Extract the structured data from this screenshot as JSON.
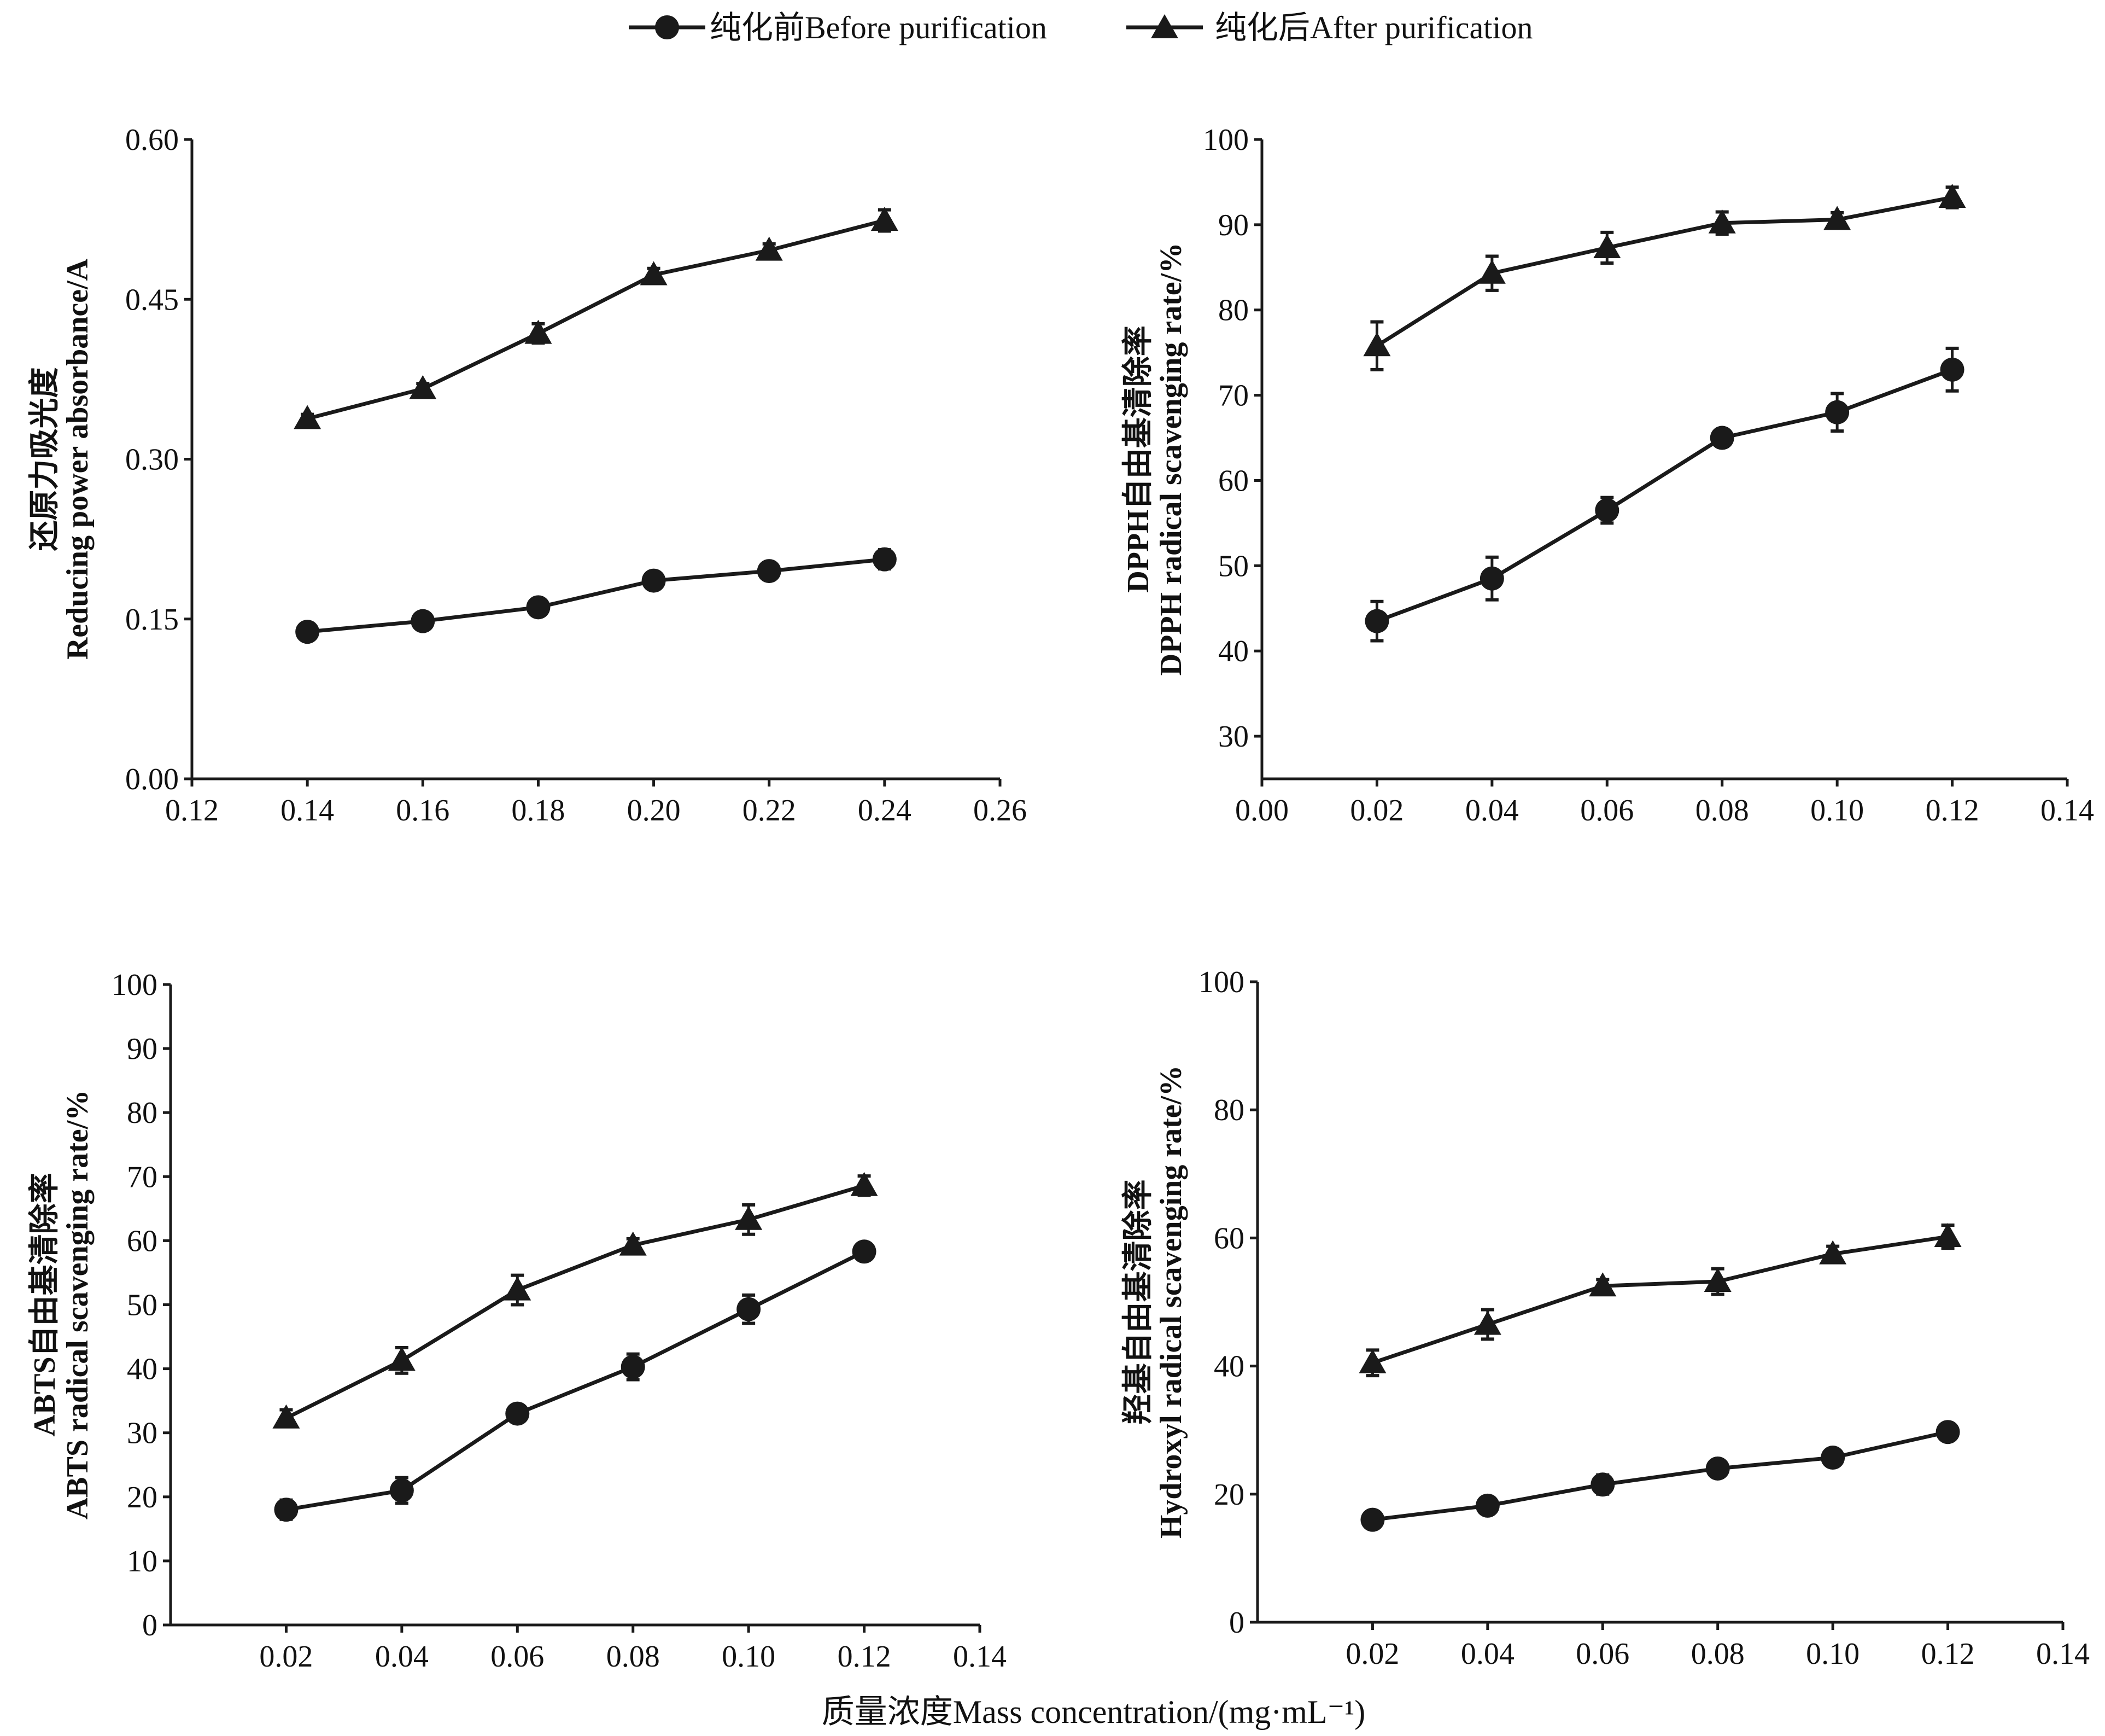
{
  "legend": {
    "before": "纯化前Before purification",
    "after": "纯化后After purification"
  },
  "shared_xlabel": "质量浓度Mass concentration/(mg·mL⁻¹)",
  "colors": {
    "line": "#1a1a1a",
    "background": "#ffffff"
  },
  "chart_data": [
    {
      "type": "line",
      "ylabel_cn": "还原力吸光度",
      "ylabel_en": "Reducing power absorbance/A",
      "xlim": [
        0.12,
        0.26
      ],
      "ylim": [
        0,
        0.6
      ],
      "xticks": [
        "0.12",
        "0.14",
        "0.16",
        "0.18",
        "0.20",
        "0.22",
        "0.24",
        "0.26"
      ],
      "yticks": [
        "0.00",
        "0.15",
        "0.30",
        "0.45",
        "0.60"
      ],
      "x": [
        0.14,
        0.16,
        0.18,
        0.2,
        0.22,
        0.24
      ],
      "series": [
        {
          "name": "纯化前Before purification",
          "marker": "circle",
          "values": [
            0.138,
            0.148,
            0.161,
            0.186,
            0.195,
            0.206
          ],
          "errors": [
            0.005,
            0.007,
            0.005,
            0.007,
            0.007,
            0.009
          ]
        },
        {
          "name": "纯化后After purification",
          "marker": "triangle",
          "values": [
            0.338,
            0.366,
            0.418,
            0.473,
            0.496,
            0.524
          ],
          "errors": [
            0.004,
            0.005,
            0.009,
            0.006,
            0.006,
            0.01
          ]
        }
      ]
    },
    {
      "type": "line",
      "ylabel_cn": "DPPH自由基清除率",
      "ylabel_en": "DPPH radical scavenging rate/%",
      "xlim": [
        0,
        0.14
      ],
      "ylim": [
        25,
        100
      ],
      "xticks": [
        "0.00",
        "0.02",
        "0.04",
        "0.06",
        "0.08",
        "0.10",
        "0.12",
        "0.14"
      ],
      "yticks": [
        "30",
        "40",
        "50",
        "60",
        "70",
        "80",
        "90",
        "100"
      ],
      "x": [
        0.02,
        0.04,
        0.06,
        0.08,
        0.1,
        0.12
      ],
      "series": [
        {
          "name": "纯化前Before purification",
          "marker": "circle",
          "values": [
            43.5,
            48.5,
            56.5,
            65,
            68,
            73
          ],
          "errors": [
            2.3,
            2.5,
            1.5,
            1,
            2.2,
            2.5
          ]
        },
        {
          "name": "纯化后After purification",
          "marker": "triangle",
          "values": [
            75.8,
            84.3,
            87.3,
            90.2,
            90.6,
            93.2
          ],
          "errors": [
            2.8,
            2,
            1.8,
            1.3,
            0.8,
            1.2
          ]
        }
      ]
    },
    {
      "type": "line",
      "ylabel_cn": "ABTS自由基清除率",
      "ylabel_en": "ABTS radical scavenging rate/%",
      "xlim": [
        0,
        0.14
      ],
      "ylim": [
        0,
        100
      ],
      "xticks": [
        "0.02",
        "0.04",
        "0.06",
        "0.08",
        "0.10",
        "0.12",
        "0.14"
      ],
      "yticks": [
        "0",
        "10",
        "20",
        "30",
        "40",
        "50",
        "60",
        "70",
        "80",
        "90",
        "100"
      ],
      "x": [
        0.02,
        0.04,
        0.06,
        0.08,
        0.1,
        0.12
      ],
      "series": [
        {
          "name": "纯化前Before purification",
          "marker": "circle",
          "values": [
            18,
            21,
            33,
            40.3,
            49.3,
            58.3
          ],
          "errors": [
            1.5,
            2,
            0.6,
            2,
            2.2,
            1
          ]
        },
        {
          "name": "纯化后After purification",
          "marker": "triangle",
          "values": [
            32.3,
            41.3,
            52.3,
            59.3,
            63.3,
            68.6
          ],
          "errors": [
            1.3,
            2,
            2.3,
            1,
            2.3,
            1.5
          ]
        }
      ]
    },
    {
      "type": "line",
      "ylabel_cn": "羟基自由基清除率",
      "ylabel_en": "Hydroxyl radical scavenging rate/%",
      "xlim": [
        0,
        0.14
      ],
      "ylim": [
        0,
        100
      ],
      "xticks": [
        "0.02",
        "0.04",
        "0.06",
        "0.08",
        "0.10",
        "0.12",
        "0.14"
      ],
      "yticks": [
        "0",
        "20",
        "40",
        "60",
        "80",
        "100"
      ],
      "x": [
        0.02,
        0.04,
        0.06,
        0.08,
        0.1,
        0.12
      ],
      "series": [
        {
          "name": "纯化前Before purification",
          "marker": "circle",
          "values": [
            16,
            18.2,
            21.5,
            24,
            25.7,
            29.7
          ],
          "errors": [
            0.5,
            0.5,
            1.5,
            1.2,
            1.2,
            0.5
          ]
        },
        {
          "name": "纯化后After purification",
          "marker": "triangle",
          "values": [
            40.5,
            46.5,
            52.5,
            53.2,
            57.5,
            60.2
          ],
          "errors": [
            2,
            2.3,
            1,
            2,
            1.2,
            1.8
          ]
        }
      ]
    }
  ]
}
